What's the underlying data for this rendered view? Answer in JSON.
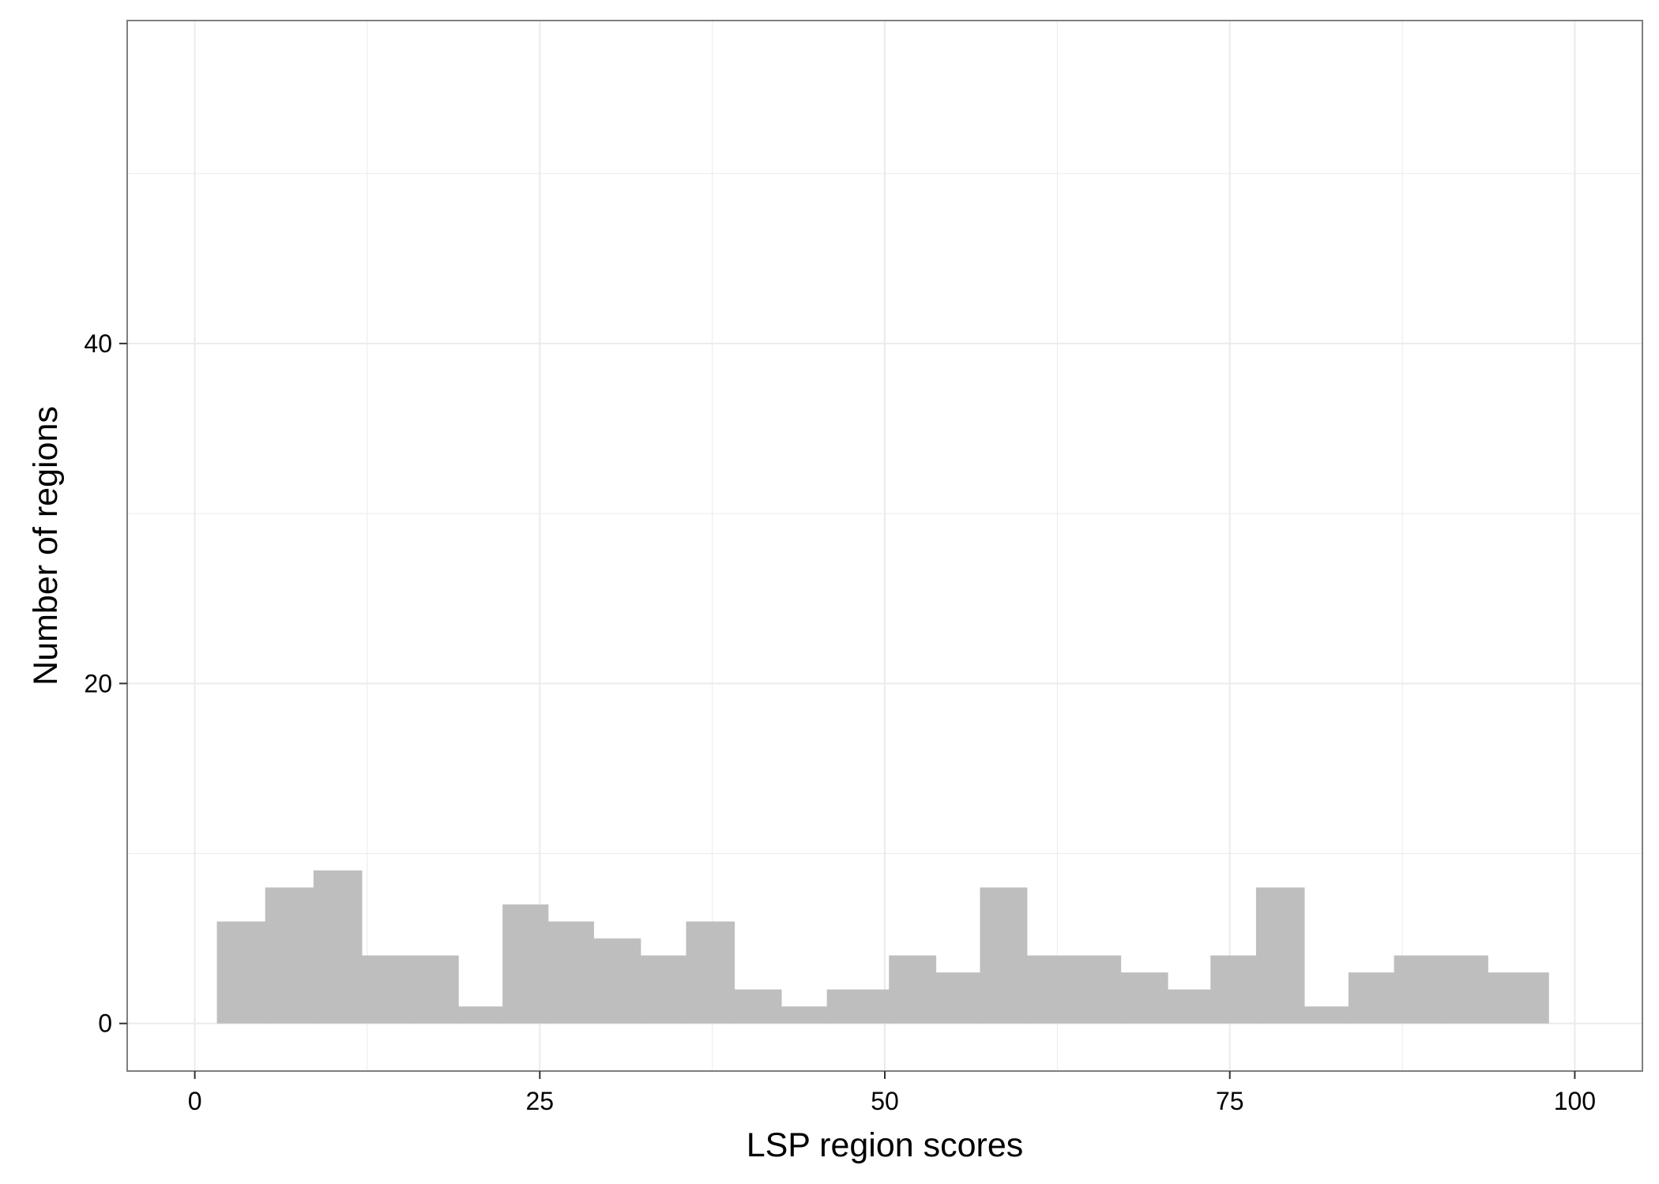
{
  "chart_data": {
    "type": "bar",
    "histogram": true,
    "xlabel": "LSP region scores",
    "ylabel": "Number of regions",
    "xlim": [
      -4.9,
      104.9
    ],
    "ylim": [
      -2.8,
      59
    ],
    "x_ticks": [
      0,
      25,
      50,
      75,
      100
    ],
    "x_tick_labels": [
      "0",
      "25",
      "50",
      "75",
      "100"
    ],
    "y_ticks": [
      0,
      20,
      40
    ],
    "y_tick_labels": [
      "0",
      "20",
      "40"
    ],
    "grid": true,
    "bin_edges": [
      1.6,
      5.1,
      8.6,
      12.1,
      15.6,
      19.1,
      22.3,
      25.6,
      28.9,
      32.3,
      35.6,
      39.1,
      42.5,
      45.8,
      50.3,
      53.7,
      56.9,
      60.3,
      63.7,
      67.1,
      70.5,
      73.6,
      76.9,
      80.4,
      83.6,
      86.9,
      90.3,
      93.7,
      98.1
    ],
    "values": [
      6,
      8,
      9,
      4,
      4,
      1,
      7,
      6,
      5,
      4,
      6,
      2,
      1,
      2,
      4,
      3,
      8,
      4,
      4,
      3,
      2,
      4,
      8,
      1,
      3,
      4,
      4,
      3
    ],
    "colors": {
      "bar": "#bebebe",
      "grid": "#ebebeb",
      "panel_border": "#7f7f7f",
      "tick": "#333333"
    }
  }
}
